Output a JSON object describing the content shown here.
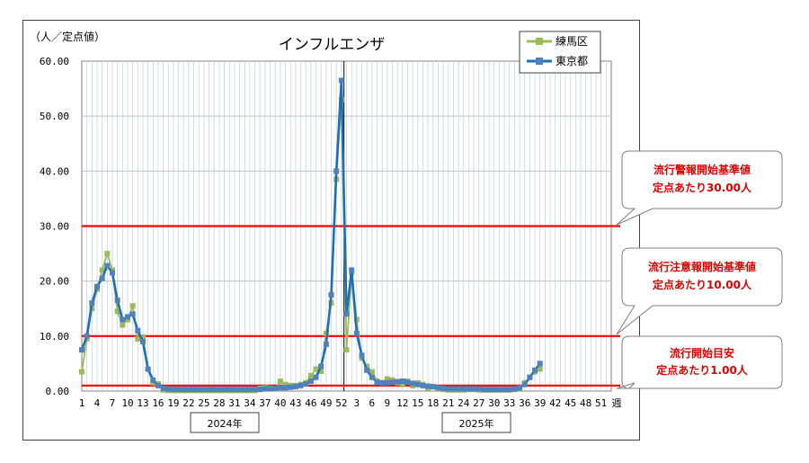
{
  "chart_data": {
    "type": "line",
    "title": "インフルエンザ",
    "ylabel": "（人／定点値）",
    "xlabel": "週",
    "ylim": [
      0,
      60
    ],
    "yticks": [
      "0.00",
      "10.00",
      "20.00",
      "30.00",
      "40.00",
      "50.00",
      "60.00"
    ],
    "xtick_labels": [
      "1",
      "4",
      "7",
      "10",
      "13",
      "16",
      "19",
      "22",
      "25",
      "28",
      "31",
      "34",
      "37",
      "40",
      "43",
      "46",
      "49",
      "52",
      "3",
      "6",
      "9",
      "12",
      "15",
      "18",
      "21",
      "24",
      "27",
      "30",
      "33",
      "36",
      "39",
      "42",
      "45",
      "48",
      "51",
      "週"
    ],
    "year_labels": [
      "2024年",
      "2025年"
    ],
    "legend": [
      "練馬区",
      "東京都"
    ],
    "legend_position": "top-right",
    "grid": true,
    "series": [
      {
        "name": "練馬区",
        "color": "#9bbb59",
        "values": [
          3.5,
          9.5,
          15,
          18.5,
          22,
          25,
          22,
          14.5,
          12,
          13,
          15.5,
          9.5,
          9.8,
          4,
          1.5,
          1.3,
          0.2,
          0.1,
          0.1,
          0.1,
          0.1,
          0.1,
          0.1,
          0.1,
          0.1,
          0.1,
          0.1,
          0.1,
          0.1,
          0.1,
          0.1,
          0.1,
          0.1,
          0.1,
          0.1,
          0.5,
          0.6,
          0.5,
          0.4,
          1.8,
          1.2,
          1.0,
          1.0,
          1.2,
          1.5,
          2.8,
          4.0,
          3.6,
          10.5,
          16,
          38.5,
          53,
          7.5,
          21.5,
          13,
          6,
          4.5,
          3.5,
          1.8,
          1.5,
          2.2,
          2.0,
          1.5,
          1.2,
          1.8,
          1.0,
          1.5,
          1.2,
          0.5,
          0.8,
          0.5,
          0.3,
          0.2,
          0.2,
          0.2,
          0.2,
          0.3,
          0.3,
          0.2,
          0.2,
          0.2,
          0.2,
          0.2,
          0.2,
          0.2,
          0.3,
          0.5,
          1.5,
          2.5,
          3.5,
          4.0
        ]
      },
      {
        "name": "東京都",
        "color": "#4f81bd",
        "values": [
          7.5,
          10,
          16,
          19,
          20.5,
          22.8,
          21.5,
          16.5,
          13,
          13.5,
          14,
          11,
          9,
          4,
          2,
          1,
          0.5,
          0.4,
          0.3,
          0.3,
          0.3,
          0.3,
          0.3,
          0.3,
          0.3,
          0.3,
          0.3,
          0.3,
          0.3,
          0.3,
          0.3,
          0.3,
          0.3,
          0.3,
          0.3,
          0.3,
          0.4,
          0.4,
          0.5,
          0.6,
          0.6,
          0.7,
          0.8,
          1.0,
          1.3,
          1.8,
          2.5,
          4.5,
          8.5,
          17.5,
          40,
          56.5,
          14,
          22,
          10.5,
          6.5,
          3.8,
          2.5,
          1.6,
          1.5,
          1.5,
          1.6,
          1.7,
          1.8,
          1.6,
          1.4,
          1.2,
          1.0,
          0.9,
          0.8,
          0.6,
          0.5,
          0.4,
          0.4,
          0.4,
          0.4,
          0.4,
          0.4,
          0.4,
          0.3,
          0.3,
          0.3,
          0.3,
          0.3,
          0.3,
          0.4,
          0.6,
          1.2,
          2.5,
          3.8,
          5.0
        ]
      }
    ],
    "thresholds": [
      {
        "value": 30,
        "color": "#ff0000"
      },
      {
        "value": 10,
        "color": "#ff0000"
      },
      {
        "value": 1,
        "color": "#ff0000"
      }
    ]
  },
  "callouts": [
    {
      "line1": "流行警報開始基準値",
      "line2": "定点あたり30.00人"
    },
    {
      "line1": "流行注意報開始基準値",
      "line2": "定点あたり10.00人"
    },
    {
      "line1": "流行開始目安",
      "line2": "定点あたり1.00人"
    }
  ]
}
